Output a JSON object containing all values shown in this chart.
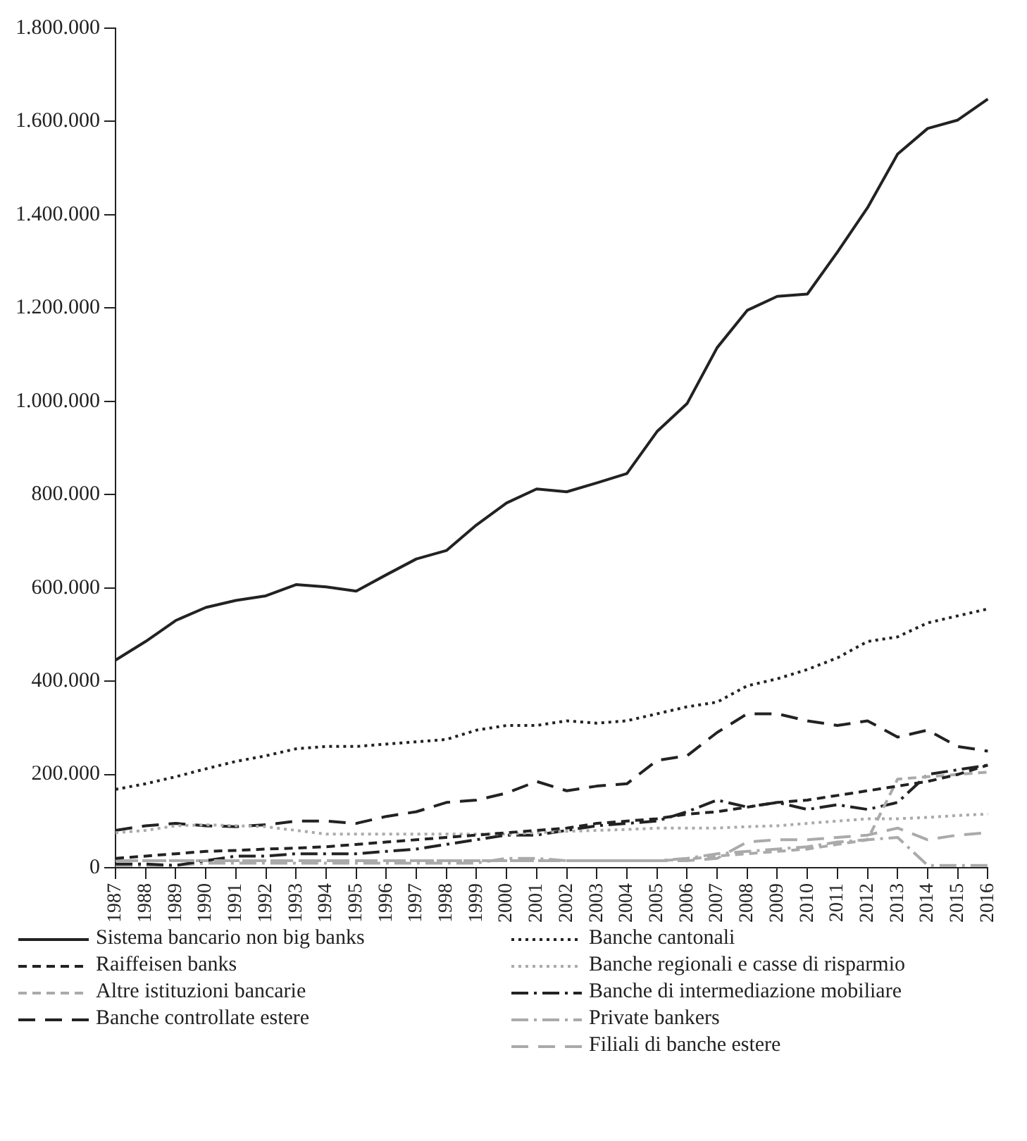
{
  "chart_data": {
    "type": "line",
    "categories": [
      "1987",
      "1988",
      "1989",
      "1990",
      "1991",
      "1992",
      "1993",
      "1994",
      "1995",
      "1996",
      "1997",
      "1998",
      "1999",
      "2000",
      "2001",
      "2002",
      "2003",
      "2004",
      "2005",
      "2006",
      "2007",
      "2008",
      "2009",
      "2010",
      "2011",
      "2012",
      "2013",
      "2014",
      "2015",
      "2016"
    ],
    "ylim": [
      0,
      1800000
    ],
    "yticks": [
      0,
      {
        "value": 200000,
        "label": "200.000"
      },
      {
        "value": 400000,
        "label": "400.000"
      },
      {
        "value": 600000,
        "label": "600.000"
      },
      {
        "value": 800000,
        "label": "800.000"
      },
      {
        "value": 1000000,
        "label": "1.000.000"
      },
      {
        "value": 1200000,
        "label": "1.200.000"
      },
      {
        "value": 1400000,
        "label": "1.400.000"
      },
      {
        "value": 1600000,
        "label": "1.600.000"
      },
      {
        "value": 1800000,
        "label": "1.800.000"
      }
    ],
    "grid": false,
    "legend": "bottom",
    "marker": "none",
    "series": [
      {
        "name": "Sistema bancario non big banks",
        "color": "#222222",
        "line_style": "solid",
        "values": [
          445000,
          485000,
          530000,
          558000,
          573000,
          583000,
          607000,
          602000,
          593000,
          628000,
          662000,
          680000,
          735000,
          782000,
          812000,
          806000,
          825000,
          845000,
          935000,
          995000,
          1115000,
          1195000,
          1225000,
          1230000,
          1320000,
          1415000,
          1530000,
          1585000,
          1603000,
          1648000
        ]
      },
      {
        "name": "Banche cantonali",
        "color": "#222222",
        "line_style": "dotted",
        "values": [
          168000,
          180000,
          195000,
          212000,
          228000,
          240000,
          255000,
          260000,
          260000,
          265000,
          270000,
          275000,
          295000,
          305000,
          305000,
          315000,
          310000,
          315000,
          330000,
          345000,
          355000,
          390000,
          405000,
          425000,
          450000,
          485000,
          495000,
          525000,
          540000,
          555000
        ]
      },
      {
        "name": "Raiffeisen banks",
        "color": "#222222",
        "line_style": "dashed",
        "values": [
          20000,
          25000,
          30000,
          35000,
          37000,
          40000,
          42000,
          45000,
          50000,
          55000,
          60000,
          65000,
          70000,
          75000,
          80000,
          85000,
          95000,
          100000,
          105000,
          115000,
          120000,
          130000,
          140000,
          145000,
          155000,
          165000,
          175000,
          185000,
          200000,
          220000
        ]
      },
      {
        "name": "Banche regionali e casse di risparmio",
        "color": "#aaaaaa",
        "line_style": "dotted",
        "values": [
          75000,
          80000,
          90000,
          92000,
          90000,
          88000,
          80000,
          72000,
          72000,
          72000,
          72000,
          72000,
          72000,
          72000,
          75000,
          78000,
          80000,
          82000,
          85000,
          85000,
          85000,
          88000,
          90000,
          95000,
          100000,
          105000,
          105000,
          108000,
          112000,
          115000
        ]
      },
      {
        "name": "Altre istituzioni bancarie",
        "color": "#aaaaaa",
        "line_style": "dashed",
        "values": [
          15000,
          15000,
          15000,
          15000,
          15000,
          15000,
          15000,
          15000,
          15000,
          15000,
          15000,
          15000,
          15000,
          15000,
          15000,
          15000,
          15000,
          15000,
          15000,
          18000,
          25000,
          30000,
          35000,
          40000,
          50000,
          60000,
          190000,
          195000,
          200000,
          205000
        ]
      },
      {
        "name": "Banche di intermediazione mobiliare",
        "color": "#222222",
        "line_style": "dashdot",
        "values": [
          8000,
          8000,
          5000,
          15000,
          25000,
          25000,
          30000,
          30000,
          30000,
          35000,
          40000,
          50000,
          60000,
          70000,
          70000,
          80000,
          90000,
          95000,
          100000,
          120000,
          145000,
          130000,
          140000,
          125000,
          135000,
          125000,
          140000,
          200000,
          210000,
          220000
        ]
      },
      {
        "name": "Banche controllate estere",
        "color": "#222222",
        "line_style": "longdash",
        "values": [
          80000,
          90000,
          95000,
          90000,
          88000,
          92000,
          100000,
          100000,
          95000,
          110000,
          120000,
          140000,
          145000,
          160000,
          185000,
          165000,
          175000,
          180000,
          230000,
          240000,
          290000,
          330000,
          330000,
          315000,
          305000,
          315000,
          280000,
          295000,
          260000,
          250000
        ]
      },
      {
        "name": "Private bankers",
        "color": "#aaaaaa",
        "line_style": "dashdot",
        "values": [
          5000,
          5000,
          5000,
          10000,
          10000,
          10000,
          10000,
          10000,
          10000,
          10000,
          10000,
          10000,
          10000,
          20000,
          20000,
          15000,
          15000,
          15000,
          15000,
          20000,
          30000,
          35000,
          40000,
          45000,
          55000,
          60000,
          65000,
          5000,
          5000,
          5000
        ]
      },
      {
        "name": "Filiali di banche estere",
        "color": "#aaaaaa",
        "line_style": "longdash",
        "values": [
          15000,
          15000,
          15000,
          15000,
          15000,
          15000,
          15000,
          15000,
          15000,
          15000,
          15000,
          15000,
          15000,
          15000,
          15000,
          15000,
          15000,
          15000,
          15000,
          15000,
          20000,
          55000,
          60000,
          60000,
          65000,
          70000,
          85000,
          60000,
          70000,
          75000
        ]
      }
    ]
  }
}
